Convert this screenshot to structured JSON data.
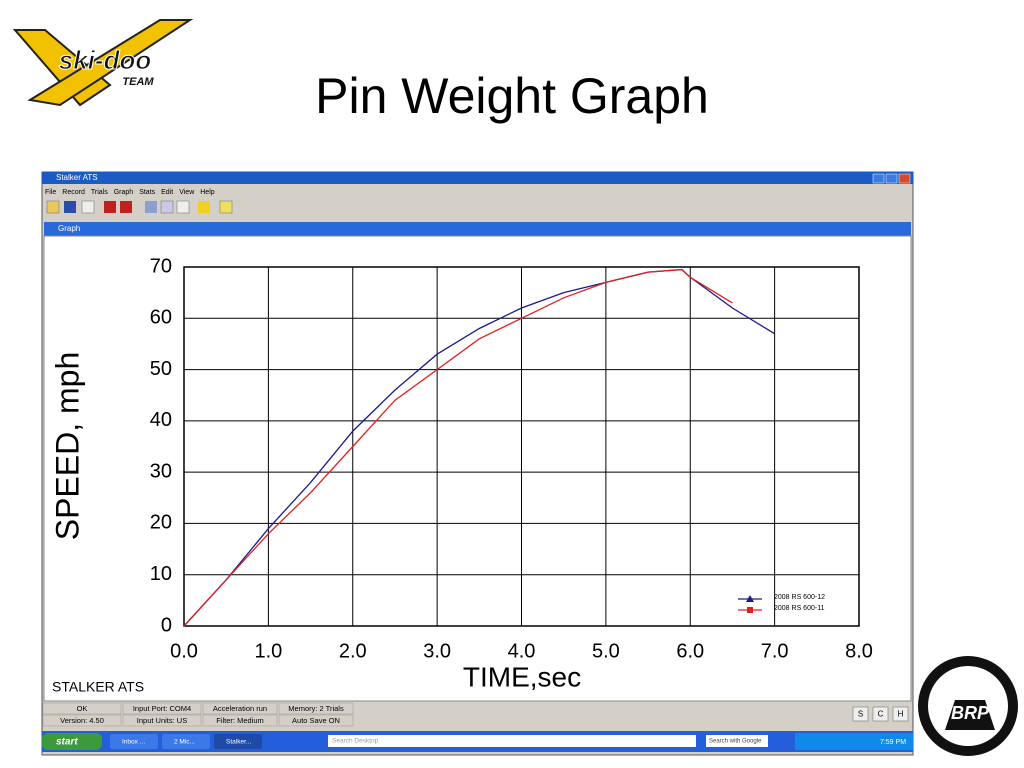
{
  "logo": {
    "brand": "ski-doo",
    "sub": "TEAM"
  },
  "slide_title": "Pin Weight Graph",
  "window": {
    "title": "Stalker ATS",
    "menu": [
      "File",
      "Record",
      "Trials",
      "Graph",
      "Stats",
      "Edit",
      "View",
      "Help"
    ],
    "graph_title": "Graph",
    "footer_label": "STALKER ATS",
    "status": [
      [
        "OK",
        "Version: 4.50"
      ],
      [
        "Input Port: COM4",
        "Input Units: US"
      ],
      [
        "Acceleration run",
        "Filter: Medium"
      ],
      [
        "Memory: 2 Trials",
        "Auto Save ON"
      ]
    ],
    "buttons": [
      "S",
      "C",
      "H"
    ]
  },
  "taskbar": {
    "start": "start",
    "items": [
      "Inbox ...",
      "2 Mic...",
      "Stalker..."
    ],
    "search": "Search Desktop",
    "google": "Search with Google",
    "clock": "7:59 PM"
  },
  "brp": "BRP",
  "chart_data": {
    "type": "line",
    "xlabel": "TIME,sec",
    "ylabel": "SPEED, mph",
    "xlim": [
      0,
      8
    ],
    "ylim": [
      0,
      70
    ],
    "xticks": [
      {
        "value": 0,
        "label": "0.0"
      },
      {
        "value": 1,
        "label": "1.0"
      },
      {
        "value": 2,
        "label": "2.0"
      },
      {
        "value": 3,
        "label": "3.0"
      },
      {
        "value": 4,
        "label": "4.0"
      },
      {
        "value": 5,
        "label": "5.0"
      },
      {
        "value": 6,
        "label": "6.0"
      },
      {
        "value": 7,
        "label": "7.0"
      },
      {
        "value": 8,
        "label": "8.0"
      }
    ],
    "yticks": [
      0,
      10,
      20,
      30,
      40,
      50,
      60,
      70
    ],
    "grid": true,
    "legend": "lower right",
    "series": [
      {
        "name": "2008 RS 600-12",
        "color": "#1a1a8c",
        "marker": "triangle",
        "x": [
          0,
          0.5,
          1.0,
          1.5,
          2.0,
          2.5,
          3.0,
          3.5,
          4.0,
          4.5,
          5.0,
          5.5,
          5.9,
          6.0,
          6.5,
          7.0
        ],
        "values": [
          0,
          9,
          19,
          28,
          38,
          46,
          53,
          58,
          62,
          65,
          67,
          69,
          69.5,
          68,
          62,
          57
        ]
      },
      {
        "name": "2008 RS 600-11",
        "color": "#e02020",
        "marker": "square",
        "x": [
          0,
          0.5,
          1.0,
          1.5,
          2.0,
          2.5,
          3.0,
          3.5,
          4.0,
          4.5,
          5.0,
          5.5,
          5.9,
          6.0,
          6.5
        ],
        "values": [
          0,
          9,
          18,
          26,
          35,
          44,
          50,
          56,
          60,
          64,
          67,
          69,
          69.5,
          68,
          63
        ]
      }
    ]
  }
}
